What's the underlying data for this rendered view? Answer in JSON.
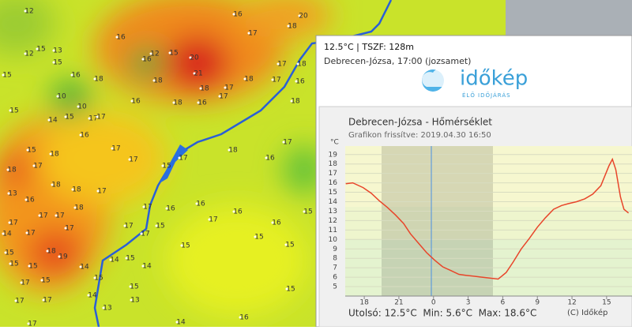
{
  "map": {
    "stations": [
      12,
      20,
      16,
      18,
      16,
      17,
      12,
      15,
      13,
      16,
      12,
      15,
      20,
      21,
      15,
      15,
      16,
      10,
      10,
      18,
      18,
      17,
      18,
      17,
      16,
      18,
      18,
      17,
      16,
      18,
      16,
      17,
      18,
      15,
      14,
      15,
      17,
      17,
      16,
      17,
      15,
      18,
      18,
      17,
      18,
      18,
      17,
      13,
      16,
      15,
      17,
      17,
      18,
      17,
      16,
      16,
      16,
      17,
      18,
      17,
      17,
      17,
      14,
      17,
      17,
      17,
      15,
      17,
      16,
      16,
      15,
      15,
      15,
      15,
      15,
      18,
      19,
      15,
      17,
      15,
      14,
      14,
      15,
      14,
      15,
      15,
      14,
      13,
      13,
      17,
      17,
      14,
      16,
      17,
      15,
      17,
      15
    ]
  },
  "popup": {
    "header": "12.5°C | TSZF: 128m",
    "location": "Debrecen-Józsa, 17:00 (jozsamet)",
    "logo": "időkép",
    "logo_sub": "ÉLŐ IDŐJÁRÁS",
    "footer": "Utolsó: 12.5°C  Min: 5.6°C  Max: 18.6°C",
    "copyright": "(C) Időkép"
  },
  "chart_data": {
    "type": "line",
    "title": "Debrecen-Józsa - Hőmérséklet",
    "subtitle": "Grafikon frissítve: 2019.04.30 16:50",
    "y_unit": "°C",
    "color": "#e8452a",
    "x": [
      16.4,
      17.0,
      17.9,
      18.6,
      19.3,
      20.0,
      20.7,
      21.4,
      22.0,
      22.7,
      23.4,
      24.1,
      24.8,
      25.5,
      26.2,
      26.8,
      27.5,
      28.2,
      28.9,
      29.6,
      30.3,
      30.9,
      31.6,
      32.3,
      33.0,
      33.7,
      34.4,
      35.1,
      35.7,
      36.4,
      37.1,
      37.8,
      38.5,
      39.2,
      39.5,
      39.8,
      40.2,
      40.5,
      40.9
    ],
    "values": [
      15.9,
      16.0,
      15.5,
      14.9,
      14.1,
      13.4,
      12.6,
      11.7,
      10.6,
      9.6,
      8.6,
      7.8,
      7.1,
      6.7,
      6.3,
      6.2,
      6.1,
      6.0,
      5.9,
      5.8,
      6.5,
      7.6,
      9.0,
      10.1,
      11.3,
      12.3,
      13.2,
      13.6,
      13.8,
      14.0,
      14.3,
      14.8,
      15.7,
      17.8,
      18.5,
      17.4,
      14.5,
      13.2,
      12.8
    ],
    "xlim": [
      16.35,
      41.2
    ],
    "xticks": [
      18,
      21,
      {
        "value": 24,
        "label": "0"
      },
      {
        "value": 27,
        "label": "3"
      },
      {
        "value": 30,
        "label": "6"
      },
      {
        "value": 33,
        "label": "9"
      },
      {
        "value": 36,
        "label": "12"
      },
      {
        "value": 39,
        "label": "15"
      }
    ],
    "ylim": [
      4,
      19.9
    ],
    "yticks": [
      5,
      6,
      7,
      8,
      9,
      10,
      11,
      12,
      13,
      14,
      15,
      16,
      17,
      18,
      19
    ],
    "grid": true
  }
}
